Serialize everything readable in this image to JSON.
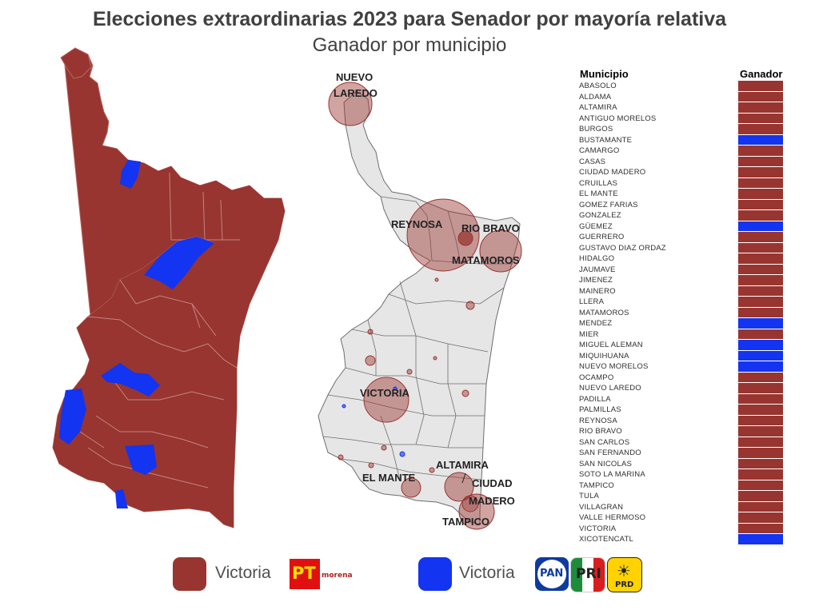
{
  "title": "Elecciones extraordinarias 2023 para Senador por mayoría relativa",
  "subtitle": "Ganador por municipio",
  "colors": {
    "morena": "#983530",
    "pan": "#1334f0",
    "grey": "#e6e6e6",
    "border": "#ffffff"
  },
  "bubble_labels": {
    "nuevo_laredo_1": "NUEVO",
    "nuevo_laredo_2": "LAREDO",
    "reynosa": "REYNOSA",
    "rio_bravo": "RIO BRAVO",
    "matamoros": "MATAMOROS",
    "victoria": "VICTORIA",
    "altamira": "ALTAMIRA",
    "ciudad_1": "CIUDAD",
    "ciudad_2": "MADERO",
    "el_mante": "EL MANTE",
    "tampico": "TAMPICO"
  },
  "table": {
    "col_municipio": "Municipio",
    "col_ganador": "Ganador",
    "rows": [
      {
        "name": "ABASOLO",
        "winner": "morena"
      },
      {
        "name": "ALDAMA",
        "winner": "morena"
      },
      {
        "name": "ALTAMIRA",
        "winner": "morena"
      },
      {
        "name": "ANTIGUO MORELOS",
        "winner": "morena"
      },
      {
        "name": "BURGOS",
        "winner": "morena"
      },
      {
        "name": "BUSTAMANTE",
        "winner": "pan"
      },
      {
        "name": "CAMARGO",
        "winner": "morena"
      },
      {
        "name": "CASAS",
        "winner": "morena"
      },
      {
        "name": "CIUDAD MADERO",
        "winner": "morena"
      },
      {
        "name": "CRUILLAS",
        "winner": "morena"
      },
      {
        "name": "EL MANTE",
        "winner": "morena"
      },
      {
        "name": "GOMEZ FARIAS",
        "winner": "morena"
      },
      {
        "name": "GONZALEZ",
        "winner": "morena"
      },
      {
        "name": "GÜEMEZ",
        "winner": "pan"
      },
      {
        "name": "GUERRERO",
        "winner": "morena"
      },
      {
        "name": "GUSTAVO DIAZ ORDAZ",
        "winner": "morena"
      },
      {
        "name": "HIDALGO",
        "winner": "morena"
      },
      {
        "name": "JAUMAVE",
        "winner": "morena"
      },
      {
        "name": "JIMENEZ",
        "winner": "morena"
      },
      {
        "name": "MAINERO",
        "winner": "morena"
      },
      {
        "name": "LLERA",
        "winner": "morena"
      },
      {
        "name": "MATAMOROS",
        "winner": "morena"
      },
      {
        "name": "MENDEZ",
        "winner": "pan"
      },
      {
        "name": "MIER",
        "winner": "morena"
      },
      {
        "name": "MIGUEL ALEMAN",
        "winner": "pan"
      },
      {
        "name": "MIQUIHUANA",
        "winner": "pan"
      },
      {
        "name": "NUEVO MORELOS",
        "winner": "pan"
      },
      {
        "name": "OCAMPO",
        "winner": "morena"
      },
      {
        "name": "NUEVO LAREDO",
        "winner": "morena"
      },
      {
        "name": "PADILLA",
        "winner": "morena"
      },
      {
        "name": "PALMILLAS",
        "winner": "morena"
      },
      {
        "name": "REYNOSA",
        "winner": "morena"
      },
      {
        "name": "RIO BRAVO",
        "winner": "morena"
      },
      {
        "name": "SAN CARLOS",
        "winner": "morena"
      },
      {
        "name": "SAN FERNANDO",
        "winner": "morena"
      },
      {
        "name": "SAN NICOLAS",
        "winner": "morena"
      },
      {
        "name": "SOTO LA MARINA",
        "winner": "morena"
      },
      {
        "name": "TAMPICO",
        "winner": "morena"
      },
      {
        "name": "TULA",
        "winner": "morena"
      },
      {
        "name": "VILLAGRAN",
        "winner": "morena"
      },
      {
        "name": "VALLE HERMOSO",
        "winner": "morena"
      },
      {
        "name": "VICTORIA",
        "winner": "morena"
      },
      {
        "name": "XICOTENCATL",
        "winner": "pan"
      }
    ]
  },
  "legend": {
    "label_1": "Victoria",
    "label_2": "Victoria",
    "logo_pt": "PT",
    "logo_morena": "morena",
    "logo_pan": "PAN",
    "logo_pri": "PRI",
    "logo_prd": "PRD"
  }
}
